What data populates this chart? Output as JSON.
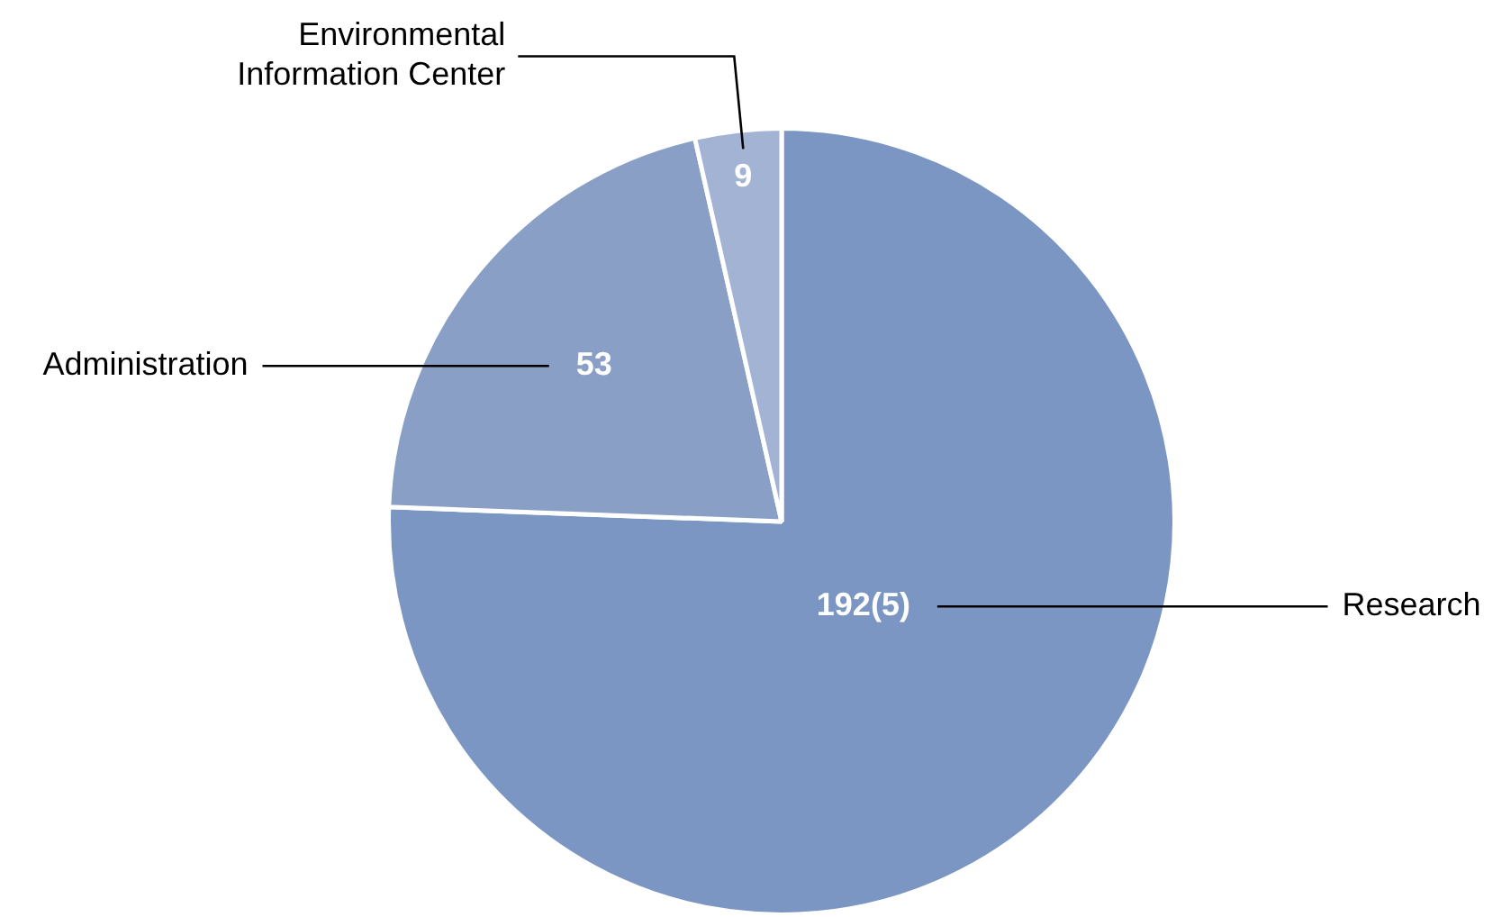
{
  "chart_data": {
    "type": "pie",
    "categories": [
      "Research",
      "Administration",
      "Environmental Information Center"
    ],
    "values": [
      192,
      53,
      9
    ],
    "value_labels": [
      "192(5)",
      "53",
      "9"
    ],
    "colors": [
      "#7b96c2",
      "#8a9fc6",
      "#a3b3d4"
    ],
    "legend": false
  }
}
